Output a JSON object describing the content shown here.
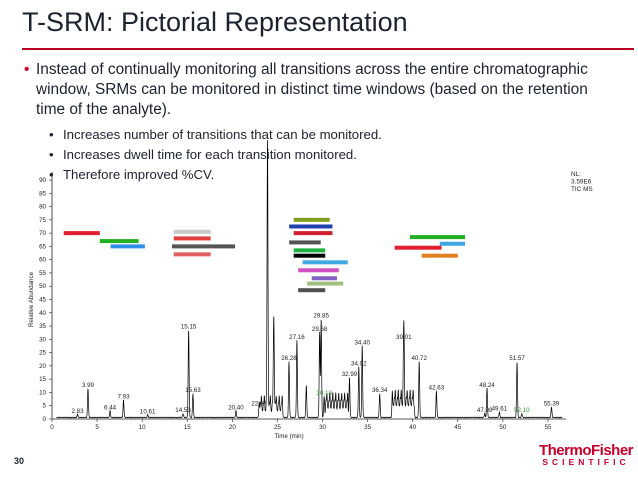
{
  "slide": {
    "title": "T-SRM:  Pictorial Representation",
    "bullet_main": "Instead of continually monitoring all transitions across the entire chromatographic window, SRMs can be monitored in distinct time windows (based on the retention time of the analyte).",
    "sub_bullets": [
      "Increases number of transitions that can be monitored.",
      "Increases dwell time for each transition monitored.",
      "Therefore improved %CV."
    ],
    "page_number": "30",
    "logo_top": "ThermoFisher",
    "logo_bottom": "SCIENTIFIC",
    "colors": {
      "rule": "#b80020",
      "logo": "#c8002a",
      "trace": "#000000"
    }
  },
  "chart_data": {
    "type": "line",
    "title": "",
    "xlabel": "Time (min)",
    "ylabel": "Relative Abundance",
    "xlim": [
      0,
      57
    ],
    "ylim": [
      0,
      90
    ],
    "xticks": [
      0,
      5,
      10,
      15,
      20,
      25,
      30,
      35,
      40,
      45,
      50,
      55
    ],
    "yticks": [
      0,
      5,
      10,
      15,
      20,
      25,
      30,
      35,
      40,
      45,
      50,
      55,
      60,
      65,
      70,
      75,
      80,
      85,
      90
    ],
    "meta_lines": [
      "NL:",
      "3.59E6",
      "TIC  MS"
    ],
    "peaks": [
      {
        "t": 2.83,
        "y": 1.2,
        "label": "2.83"
      },
      {
        "t": 3.99,
        "y": 11,
        "label": "3.99"
      },
      {
        "t": 6.44,
        "y": 2.5,
        "label": "6.44"
      },
      {
        "t": 7.93,
        "y": 6.5,
        "label": "7.93"
      },
      {
        "t": 10.61,
        "y": 1.0,
        "label": "10.61"
      },
      {
        "t": 14.53,
        "y": 1.5,
        "label": "14.53"
      },
      {
        "t": 15.15,
        "y": 33,
        "label": "15.15"
      },
      {
        "t": 15.63,
        "y": 9,
        "label": "15.63"
      },
      {
        "t": 20.4,
        "y": 2.5,
        "label": "20.40"
      },
      {
        "t": 22.97,
        "y": 4,
        "label": "22.97"
      },
      {
        "t": 23.9,
        "y": 100,
        "label": ""
      },
      {
        "t": 24.6,
        "y": 34,
        "label": ""
      },
      {
        "t": 26.28,
        "y": 21,
        "label": "26.28"
      },
      {
        "t": 27.16,
        "y": 29,
        "label": "27.16"
      },
      {
        "t": 28.2,
        "y": 12,
        "label": ""
      },
      {
        "t": 29.68,
        "y": 32,
        "label": "29.68"
      },
      {
        "t": 29.85,
        "y": 37,
        "label": "29.85"
      },
      {
        "t": 30.18,
        "y": 8,
        "label": "30.18",
        "green": true
      },
      {
        "t": 32.99,
        "y": 15,
        "label": "32.99"
      },
      {
        "t": 34.02,
        "y": 19,
        "label": "34.02"
      },
      {
        "t": 34.4,
        "y": 27,
        "label": "34.40"
      },
      {
        "t": 36.34,
        "y": 9,
        "label": "36.34"
      },
      {
        "t": 39.01,
        "y": 29,
        "label": "39.01"
      },
      {
        "t": 40.72,
        "y": 21,
        "label": "40.72"
      },
      {
        "t": 42.63,
        "y": 10,
        "label": "42.63"
      },
      {
        "t": 47.98,
        "y": 1.5,
        "label": "47.98"
      },
      {
        "t": 48.24,
        "y": 11,
        "label": "48.24"
      },
      {
        "t": 49.61,
        "y": 2,
        "label": "49.61"
      },
      {
        "t": 51.57,
        "y": 21,
        "label": "51.57"
      },
      {
        "t": 52.1,
        "y": 1.5,
        "label": "52.10",
        "green": true
      },
      {
        "t": 55.39,
        "y": 4,
        "label": "55.39"
      }
    ],
    "srm_windows": [
      {
        "start": 1.3,
        "end": 5.3,
        "y": 70,
        "color": "#e02030"
      },
      {
        "start": 5.3,
        "end": 9.6,
        "y": 67,
        "color": "#20b020"
      },
      {
        "start": 6.5,
        "end": 10.3,
        "y": 65,
        "color": "#2f8fe8"
      },
      {
        "start": 13.5,
        "end": 17.6,
        "y": 70.5,
        "color": "#c8c8c8"
      },
      {
        "start": 13.5,
        "end": 17.6,
        "y": 68,
        "color": "#e04040"
      },
      {
        "start": 13.3,
        "end": 20.3,
        "y": 65,
        "color": "#555555"
      },
      {
        "start": 13.5,
        "end": 17.6,
        "y": 62,
        "color": "#e06060"
      },
      {
        "start": 26.8,
        "end": 30.8,
        "y": 75,
        "color": "#80a020"
      },
      {
        "start": 26.3,
        "end": 31.1,
        "y": 72.5,
        "color": "#2040b0"
      },
      {
        "start": 26.8,
        "end": 31.1,
        "y": 70,
        "color": "#d02030"
      },
      {
        "start": 26.3,
        "end": 29.8,
        "y": 66.5,
        "color": "#555555"
      },
      {
        "start": 26.8,
        "end": 30.3,
        "y": 63.5,
        "color": "#20b040"
      },
      {
        "start": 26.8,
        "end": 30.3,
        "y": 61.5,
        "color": "#000000"
      },
      {
        "start": 27.8,
        "end": 32.8,
        "y": 59,
        "color": "#40a8e0"
      },
      {
        "start": 27.3,
        "end": 31.8,
        "y": 56,
        "color": "#d050c0"
      },
      {
        "start": 28.8,
        "end": 31.6,
        "y": 53,
        "color": "#8060c0"
      },
      {
        "start": 28.3,
        "end": 32.3,
        "y": 51,
        "color": "#a0c080"
      },
      {
        "start": 27.3,
        "end": 30.3,
        "y": 48.5,
        "color": "#505050"
      },
      {
        "start": 39.7,
        "end": 45.8,
        "y": 68.5,
        "color": "#20b020"
      },
      {
        "start": 43.0,
        "end": 45.8,
        "y": 66,
        "color": "#40a8e0"
      },
      {
        "start": 38.0,
        "end": 43.2,
        "y": 64.5,
        "color": "#e02030"
      },
      {
        "start": 41.0,
        "end": 45.0,
        "y": 61.5,
        "color": "#e08020"
      }
    ]
  }
}
